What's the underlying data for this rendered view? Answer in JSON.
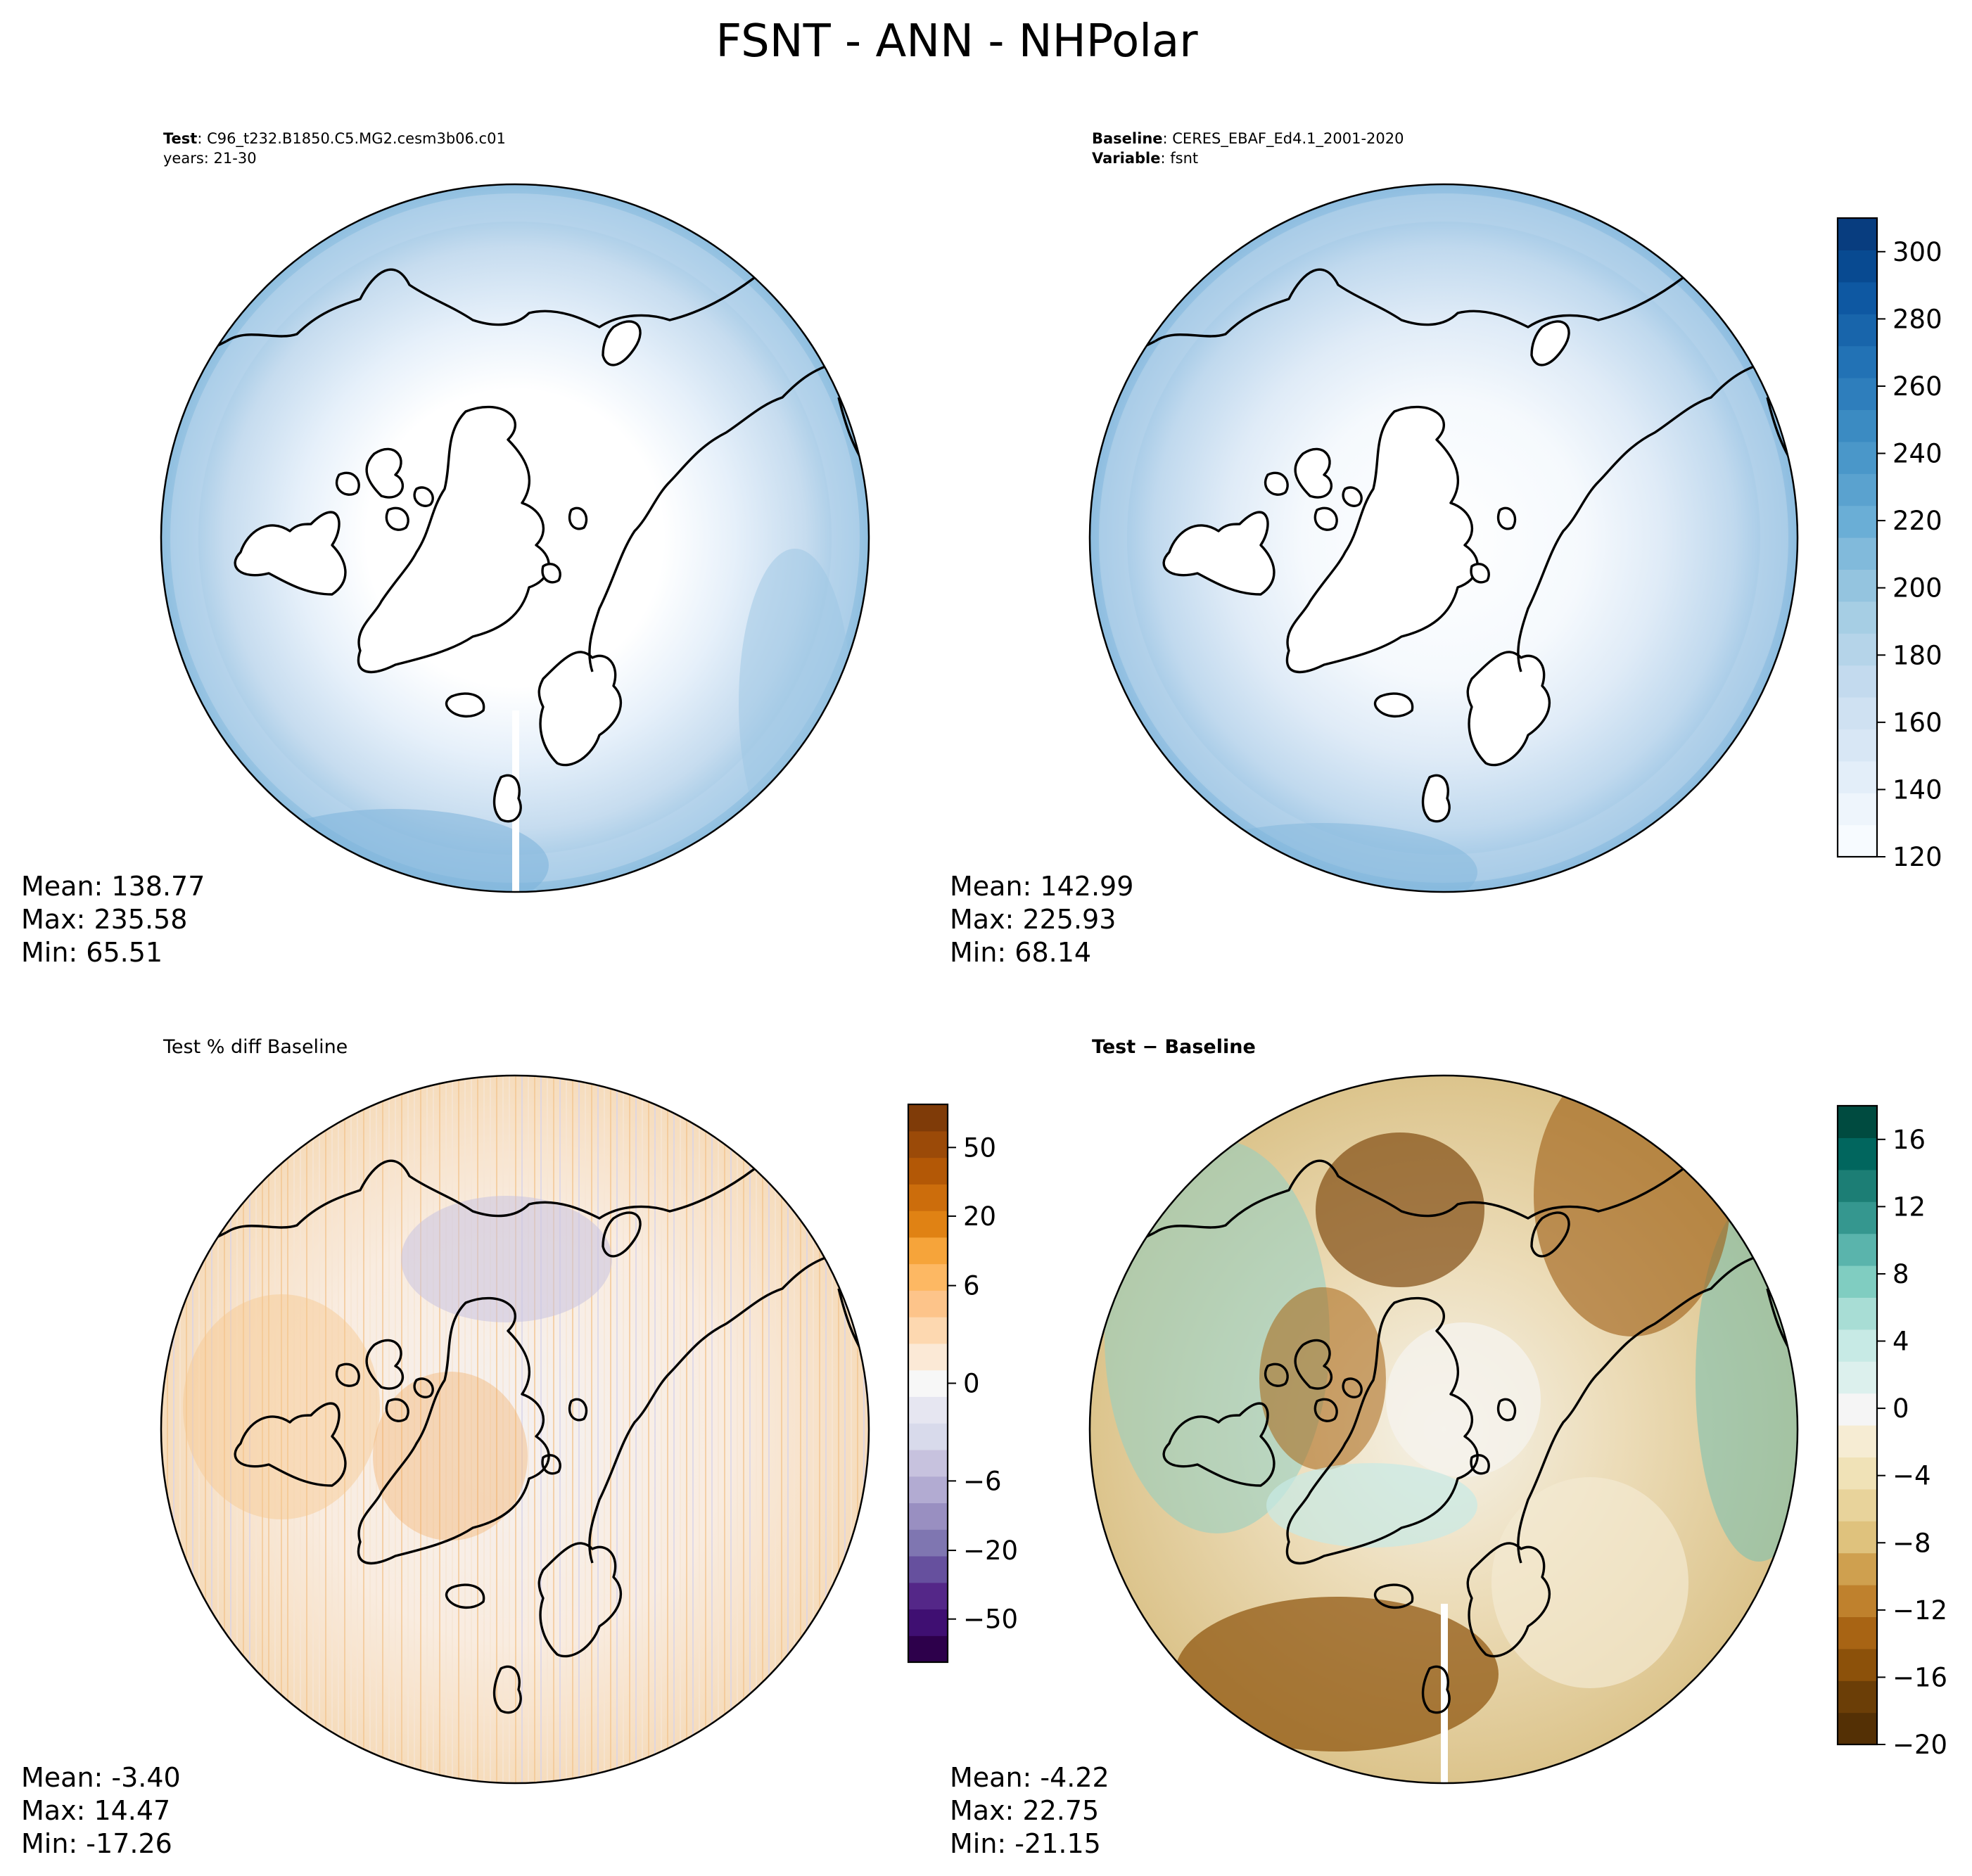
{
  "figure_title": "FSNT - ANN - NHPolar",
  "panels": {
    "test": {
      "label_bold": "Test",
      "label_rest": ": C96_t232.B1850.C5.MG2.cesm3b06.c01",
      "line2": "years: 21-30",
      "stats": {
        "mean": "Mean: 138.77",
        "max": "Max: 235.58",
        "min": "Min: 65.51"
      }
    },
    "baseline": {
      "label_bold": "Baseline",
      "label_rest": ": CERES_EBAF_Ed4.1_2001-2020",
      "line2_bold": "Variable",
      "line2_rest": ": fsnt",
      "stats": {
        "mean": "Mean: 142.99",
        "max": "Max: 225.93",
        "min": "Min: 68.14"
      }
    },
    "pctdiff": {
      "label": "Test % diff Baseline",
      "stats": {
        "mean": "Mean: -3.40",
        "max": "Max: 14.47",
        "min": "Min: -17.26"
      }
    },
    "diff": {
      "label": "Test − Baseline",
      "stats": {
        "mean": "Mean: -4.22",
        "max": "Max: 22.75",
        "min": "Min: -21.15"
      }
    }
  },
  "colorbars": {
    "blues": {
      "ticks": [
        "120",
        "140",
        "160",
        "180",
        "200",
        "220",
        "240",
        "260",
        "280",
        "300"
      ],
      "range": [
        120,
        310
      ],
      "colors": [
        "#f7fbff",
        "#eef5fc",
        "#e3eef9",
        "#d8e7f5",
        "#cfe1f2",
        "#c3daee",
        "#b5d4e9",
        "#a6cee4",
        "#94c4df",
        "#81badb",
        "#6aaed6",
        "#5aa2cf",
        "#4a97c9",
        "#3b8bc2",
        "#2e7ebc",
        "#2272b5",
        "#1865ab",
        "#0e58a2",
        "#084a91",
        "#083d7f"
      ]
    },
    "pct": {
      "ticks": [
        "50",
        "20",
        "6",
        "0",
        "−6",
        "−20",
        "−50"
      ],
      "colors": [
        "#2d004b",
        "#3f0f72",
        "#542788",
        "#66509e",
        "#7f76b1",
        "#998fc1",
        "#b2abd2",
        "#c7c2de",
        "#d8daeb",
        "#e6e6f1",
        "#f7f7f7",
        "#fbe9d6",
        "#fdd8b0",
        "#fdc48a",
        "#fdb863",
        "#f6a43a",
        "#e08214",
        "#cc6d0c",
        "#b35806",
        "#9b4a08",
        "#7f3b08"
      ]
    },
    "brbg": {
      "ticks": [
        "16",
        "12",
        "8",
        "4",
        "0",
        "−4",
        "−8",
        "−12",
        "−16",
        "−20"
      ],
      "range": [
        -20,
        18
      ],
      "colors": [
        "#543005",
        "#6b3e07",
        "#8c510a",
        "#a86414",
        "#bf812d",
        "#cfa04f",
        "#dfc27d",
        "#e8d39b",
        "#f0e2b7",
        "#f6ecd3",
        "#f5f5f5",
        "#dcf0ed",
        "#c7eae5",
        "#a8ddd5",
        "#80cdc1",
        "#5ab4ac",
        "#35978f",
        "#1c7e75",
        "#01665e",
        "#004b40"
      ]
    }
  },
  "map": {
    "land_color": "#ffffff",
    "pct_base": "#f9ede0",
    "ocean_low": "#2d84c0",
    "diff_base": "#f2e8d2"
  }
}
